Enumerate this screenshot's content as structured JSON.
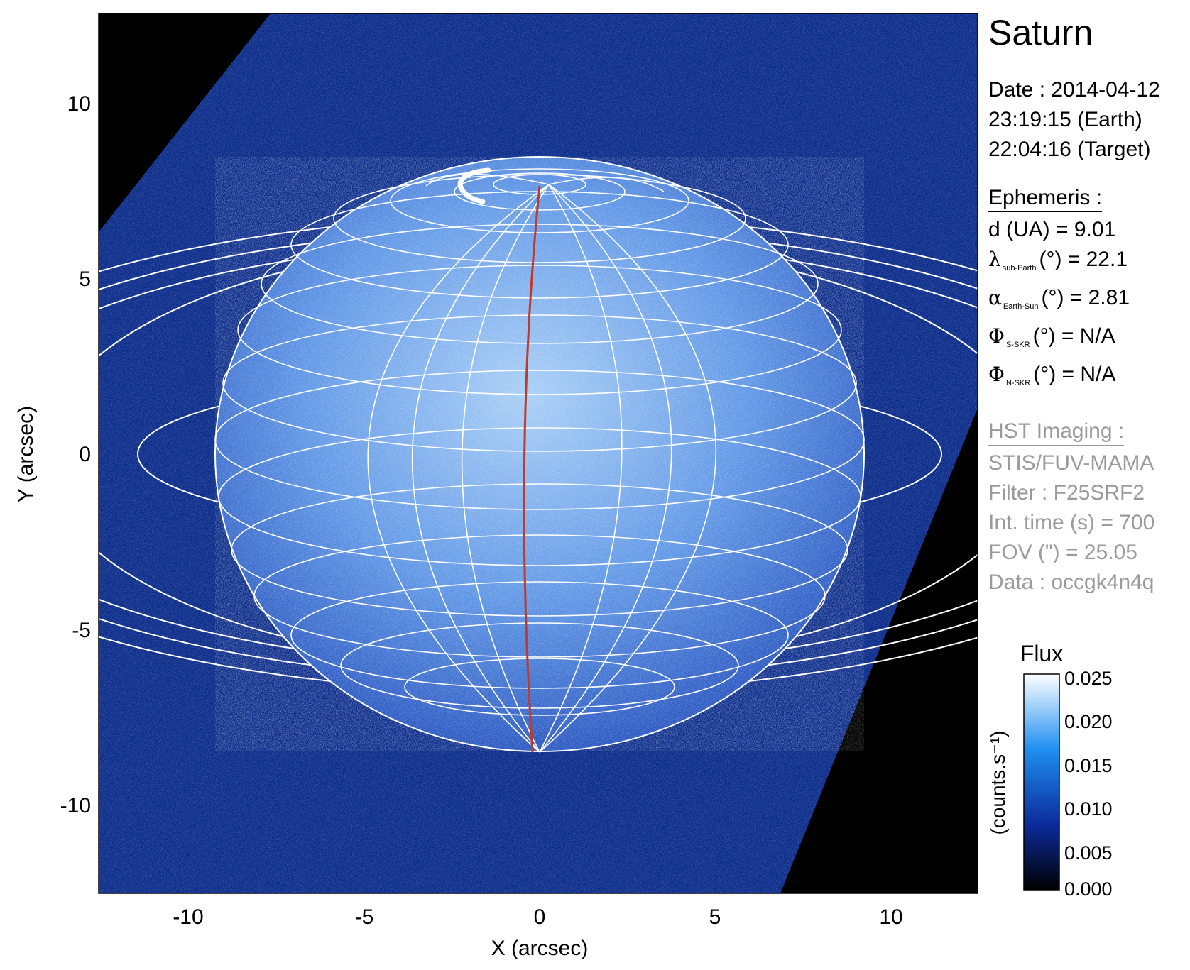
{
  "plot": {
    "xlabel": "X (arcsec)",
    "ylabel": "Y (arcsec)",
    "xticks": [
      "-10",
      "-5",
      "0",
      "5",
      "10"
    ],
    "yticks": [
      "10",
      "5",
      "0",
      "-5",
      "-10"
    ]
  },
  "panel": {
    "target": "Saturn",
    "date_line": "Date : 2014-04-12",
    "earth_time": "23:19:15 (Earth)",
    "target_time": "22:04:16 (Target)",
    "ephemeris": {
      "heading": "Ephemeris :",
      "distance": "d (UA)    = 9.01",
      "lambda_symbol": "λ",
      "lambda_sub": "sub-Earth",
      "lambda_rest": "(°) = 22.1",
      "alpha_symbol": "α",
      "alpha_sub": "Earth-Sun",
      "alpha_rest": "(°) = 2.81",
      "phi_s_symbol": "Φ",
      "phi_s_sub": "S-SKR",
      "phi_s_rest": "(°)   = N/A",
      "phi_n_symbol": "Φ",
      "phi_n_sub": "N-SKR",
      "phi_n_rest": "(°)   = N/A"
    },
    "imaging": {
      "heading": "HST Imaging :",
      "instrument": "STIS/FUV-MAMA",
      "filter": "Filter : F25SRF2",
      "int_time": "Int. time (s) = 700",
      "fov": "FOV (\") = 25.05",
      "data": "Data : occgk4n4q"
    }
  },
  "colorbar": {
    "title": "Flux",
    "unit": "(counts.s⁻¹)",
    "ticks": [
      "0.025",
      "0.020",
      "0.015",
      "0.010",
      "0.005",
      "0.000"
    ],
    "colors": [
      "#ffffff",
      "#0072e0",
      "#001a80",
      "#000000"
    ]
  },
  "colors": {
    "sky": "#000000",
    "image_field": "#0b2c8a",
    "planet_disk": "#7fb0ee",
    "grid": "#ffffff",
    "central_meridian": "#c0392b"
  }
}
